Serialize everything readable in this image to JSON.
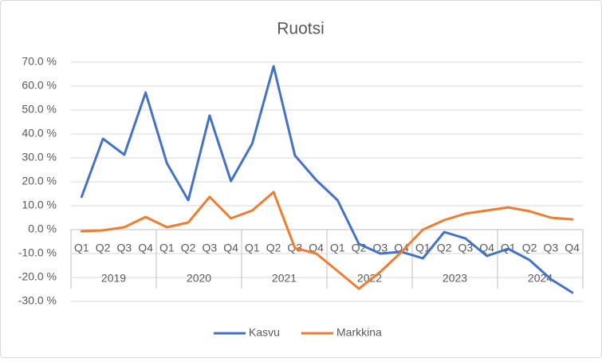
{
  "chart_data": {
    "type": "line",
    "title": "Ruotsi",
    "categories": [
      "Q1",
      "Q2",
      "Q3",
      "Q4",
      "Q1",
      "Q2",
      "Q3",
      "Q4",
      "Q1",
      "Q2",
      "Q3",
      "Q4",
      "Q1",
      "Q2",
      "Q3",
      "Q4",
      "Q1",
      "Q2",
      "Q3",
      "Q4",
      "Q1",
      "Q2",
      "Q3",
      "Q4"
    ],
    "category_groups": [
      "2019",
      "2020",
      "2021",
      "2022",
      "2023",
      "2024"
    ],
    "series": [
      {
        "name": "Kasvu",
        "color": "#4472c4",
        "values": [
          13.7,
          38,
          31.3,
          57.3,
          27.7,
          12.3,
          47.7,
          20.3,
          36,
          68.3,
          31,
          20.7,
          12.3,
          -6,
          -10,
          -9.3,
          -12,
          -1,
          -3.7,
          -11,
          -8,
          -12.7,
          -20.7,
          -26.3
        ]
      },
      {
        "name": "Markkina",
        "color": "#ed7d31",
        "values": [
          -0.7,
          -0.3,
          1,
          5.3,
          1,
          3,
          13.7,
          4.7,
          8,
          15.7,
          -7.7,
          -10,
          -17.3,
          -24.7,
          -17.7,
          -9.3,
          0,
          4,
          6.7,
          8,
          9.3,
          7.7,
          5,
          4.3
        ]
      }
    ],
    "ylim": [
      -30,
      70
    ],
    "yticks": [
      {
        "value": 70,
        "label": "70.0 %"
      },
      {
        "value": 60,
        "label": "60.0 %"
      },
      {
        "value": 50,
        "label": "50.0 %"
      },
      {
        "value": 40,
        "label": "40.0 %"
      },
      {
        "value": 30,
        "label": "30.0 %"
      },
      {
        "value": 20,
        "label": "20.0 %"
      },
      {
        "value": 10,
        "label": "10.0 %"
      },
      {
        "value": 0,
        "label": "0.0 %"
      },
      {
        "value": -10,
        "label": "-10.0 %"
      },
      {
        "value": -20,
        "label": "-20.0 %"
      },
      {
        "value": -30,
        "label": "-30.0 %"
      }
    ],
    "grid": true,
    "legend": "bottom"
  }
}
